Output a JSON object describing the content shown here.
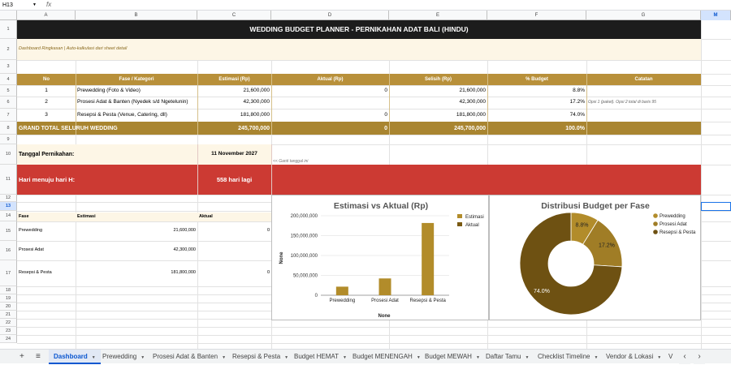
{
  "formula_bar": {
    "name_box": "H13",
    "fx_label": "fx"
  },
  "columns": [
    "A",
    "B",
    "C",
    "D",
    "E",
    "F",
    "G",
    "M"
  ],
  "rows": [
    "1",
    "2",
    "3",
    "4",
    "5",
    "6",
    "7",
    "8",
    "9",
    "10",
    "11",
    "12",
    "13",
    "14",
    "15",
    "16",
    "17",
    "18",
    "19",
    "20",
    "21",
    "22",
    "23",
    "24"
  ],
  "sheet": {
    "title": "WEDDING BUDGET PLANNER - PERNIKAHAN ADAT BALI (HINDU)",
    "subtitle": "Dashboard Ringkasan | Auto-kalkulasi dari sheet detail",
    "headers": {
      "no": "No",
      "fase": "Fase / Kategori",
      "estimasi": "Estimasi (Rp)",
      "aktual": "Aktual (Rp)",
      "selisih": "Selisih (Rp)",
      "persen": "% Budget",
      "catatan": "Catatan"
    },
    "items": [
      {
        "no": "1",
        "fase": "Prewedding (Foto & Video)",
        "estimasi": "21,600,000",
        "aktual": "0",
        "selisih": "21,600,000",
        "persen": "8.8%",
        "catatan": ""
      },
      {
        "no": "2",
        "fase": "Prosesi Adat & Banten (Nyedek s/d Ngetelunin)",
        "estimasi": "42,300,000",
        "aktual": "",
        "selisih": "42,300,000",
        "persen": "17.2%",
        "catatan": "Opsi 1 (paket). Opsi 2 total di baris 95"
      },
      {
        "no": "3",
        "fase": "Resepsi & Pesta (Venue, Catering, dll)",
        "estimasi": "181,800,000",
        "aktual": "0",
        "selisih": "181,800,000",
        "persen": "74.0%",
        "catatan": ""
      }
    ],
    "total": {
      "label": "GRAND TOTAL SELURUH WEDDING",
      "estimasi": "245,700,000",
      "aktual": "0",
      "selisih": "245,700,000",
      "persen": "100.0%"
    },
    "tanggal_label": "Tanggal Pernikahan:",
    "tanggal_value": "11 November 2027",
    "tanggal_note": "<< Ganti tanggal ini",
    "countdown_label": "Hari menuju hari H:",
    "countdown_value": "558 hari lagi",
    "table2": {
      "headers": {
        "fase": "Fase",
        "estimasi": "Estimasi",
        "aktual": "Aktual"
      },
      "rows": [
        {
          "fase": "Prewedding",
          "estimasi": "21,600,000",
          "aktual": "0"
        },
        {
          "fase": "Prosesi Adat",
          "estimasi": "42,300,000",
          "aktual": ""
        },
        {
          "fase": "Resepsi & Pesta",
          "estimasi": "181,800,000",
          "aktual": "0"
        }
      ]
    }
  },
  "colors": {
    "title_bg": "#1c1c1c",
    "header_bg": "#b8903a",
    "total_bg": "#a98530",
    "countdown_bg": "#cc3a33",
    "note_bg": "#fdf6e6",
    "estimasi": "#b28c2a",
    "aktual": "#7a5a12",
    "donut_dark": "#6e5112"
  },
  "chart_data": [
    {
      "type": "bar",
      "title": "Estimasi vs Aktual (Rp)",
      "categories": [
        "Prewedding",
        "Prosesi Adat",
        "Resepsi & Pesta"
      ],
      "series": [
        {
          "name": "Estimasi",
          "values": [
            21600000,
            42300000,
            181800000
          ]
        },
        {
          "name": "Aktual",
          "values": [
            0,
            0,
            0
          ]
        }
      ],
      "xlabel": "None",
      "ylabel": "None",
      "ylim": [
        0,
        200000000
      ],
      "yticks": [
        0,
        50000000,
        100000000,
        150000000,
        200000000
      ],
      "ytick_labels": [
        "0",
        "50,000,000",
        "100,000,000",
        "150,000,000",
        "200,000,000"
      ],
      "legend": "right",
      "grid": true
    },
    {
      "type": "pie",
      "title": "Distribusi Budget per Fase",
      "labels": [
        "Prewedding",
        "Prosesi Adat",
        "Resepsi & Pesta"
      ],
      "values": [
        8.8,
        17.2,
        74.0
      ],
      "value_labels": [
        "8.8%",
        "17.2%",
        "74.0%"
      ],
      "donut": true,
      "legend": "right"
    }
  ],
  "tabs": {
    "add_icon": "+",
    "menu_icon": "≡",
    "items": [
      "Dashboard",
      "Prewedding",
      "Prosesi Adat & Banten",
      "Resepsi & Pesta",
      "Budget HEMAT",
      "Budget MENENGAH",
      "Budget MEWAH",
      "Daftar Tamu",
      "Checklist Timeline",
      "Vendor & Lokasi",
      "V"
    ],
    "prev": "‹",
    "next": "›"
  }
}
